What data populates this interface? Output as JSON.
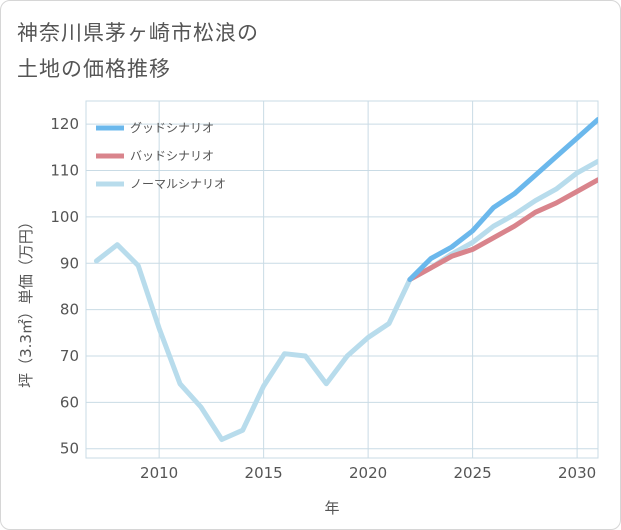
{
  "header": {
    "title_line1": "神奈川県茅ヶ崎市松浪の",
    "title_line2": "土地の価格推移"
  },
  "chart_data": {
    "type": "line",
    "title": "神奈川県茅ヶ崎市松浪の土地の価格推移",
    "xlabel": "年",
    "ylabel": "坪（3.3㎡）単価（万円）",
    "xlim": [
      2006.5,
      2031
    ],
    "ylim": [
      48,
      125
    ],
    "x_ticks": [
      2010,
      2015,
      2020,
      2025,
      2030
    ],
    "y_ticks": [
      50,
      60,
      70,
      80,
      90,
      100,
      110,
      120
    ],
    "legend_position": "top-left",
    "series": [
      {
        "name": "グッドシナリオ",
        "color": "#6bb8ec",
        "x": [
          2022,
          2023,
          2024,
          2025,
          2026,
          2027,
          2028,
          2029,
          2030,
          2031
        ],
        "values": [
          86.5,
          91,
          93.5,
          97,
          102,
          105,
          109,
          113,
          117,
          121
        ]
      },
      {
        "name": "バッドシナリオ",
        "color": "#d9848c",
        "x": [
          2022,
          2023,
          2024,
          2025,
          2026,
          2027,
          2028,
          2029,
          2030,
          2031
        ],
        "values": [
          86.5,
          89,
          91.5,
          93,
          95.5,
          98,
          101,
          103,
          105.5,
          108
        ]
      },
      {
        "name": "ノーマルシナリオ",
        "color": "#b8dcec",
        "x": [
          2007,
          2008,
          2009,
          2010,
          2011,
          2012,
          2013,
          2014,
          2015,
          2016,
          2017,
          2018,
          2019,
          2020,
          2021,
          2022,
          2023,
          2024,
          2025,
          2026,
          2027,
          2028,
          2029,
          2030,
          2031
        ],
        "values": [
          90.5,
          94,
          89.5,
          76,
          64,
          59,
          52,
          54,
          63.5,
          70.5,
          70,
          64,
          70,
          74,
          77,
          86.5,
          89,
          92,
          94.5,
          98,
          100.5,
          103.5,
          106,
          109.5,
          112
        ]
      }
    ]
  }
}
